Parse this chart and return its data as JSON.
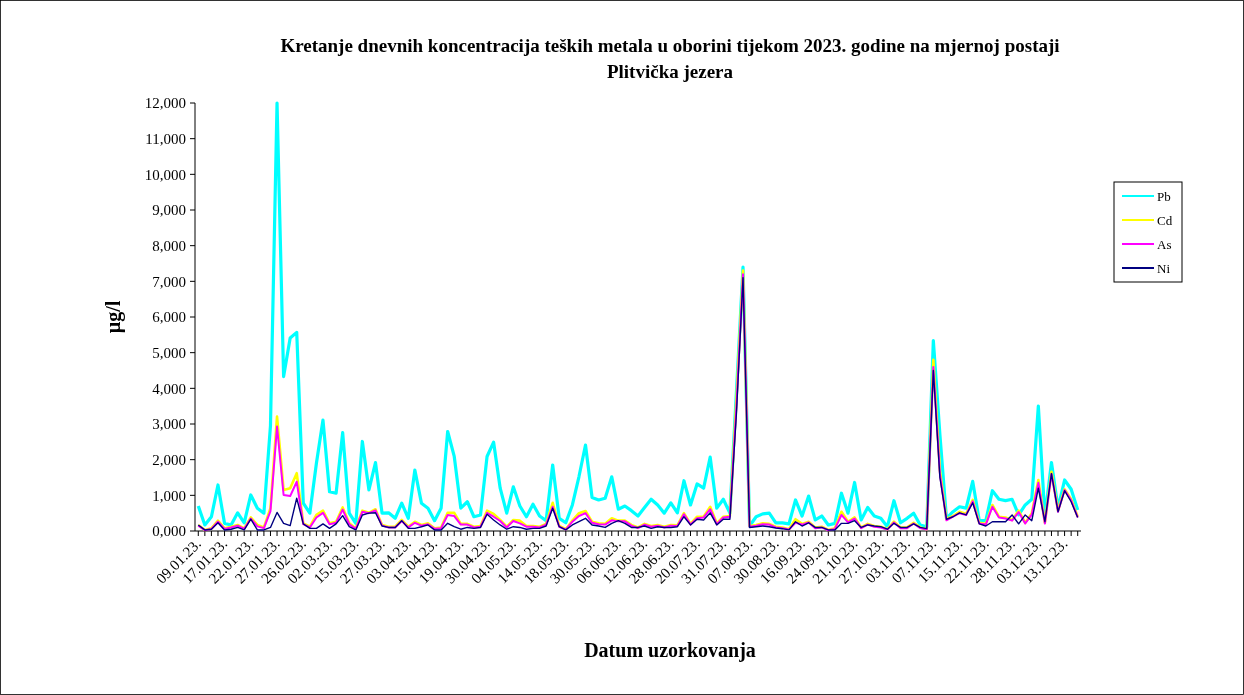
{
  "chart_data": {
    "type": "line",
    "title": "Kretanje dnevnih koncentracija teških metala u oborini tijekom 2023. godine na mjernoj postaji Plitvička jezera",
    "xlabel": "Datum uzorkovanja",
    "ylabel": "µg/l",
    "categories": [
      "09.01.23.",
      null,
      null,
      null,
      "17.01.23.",
      null,
      null,
      null,
      "22.01.23.",
      null,
      null,
      null,
      "27.01.23.",
      null,
      null,
      null,
      "26.02.23.",
      null,
      null,
      null,
      "02.03.23.",
      null,
      null,
      null,
      "15.03.23.",
      null,
      null,
      null,
      "27.03.23.",
      null,
      null,
      null,
      "03.04.23.",
      null,
      null,
      null,
      "15.04.23.",
      null,
      null,
      null,
      "19.04.23.",
      null,
      null,
      null,
      "30.04.23.",
      null,
      null,
      null,
      "04.05.23.",
      null,
      null,
      null,
      "14.05.23.",
      null,
      null,
      null,
      "18.05.23.",
      null,
      null,
      null,
      "30.05.23.",
      null,
      null,
      null,
      "06.06.23.",
      null,
      null,
      null,
      "12.06.23.",
      null,
      null,
      null,
      "28.06.23.",
      null,
      null,
      null,
      "20.07.23.",
      null,
      null,
      null,
      "31.07.23.",
      null,
      null,
      null,
      "07.08.23.",
      null,
      null,
      null,
      "30.08.23.",
      null,
      null,
      null,
      "16.09.23.",
      null,
      null,
      null,
      "24.09.23.",
      null,
      null,
      null,
      "21.10.23.",
      null,
      null,
      null,
      "27.10.23.",
      null,
      null,
      null,
      "03.11.23.",
      null,
      null,
      null,
      "07.11.23.",
      null,
      null,
      null,
      "15.11.23.",
      null,
      null,
      null,
      "22.11.23.",
      null,
      null,
      null,
      "28.11.23.",
      null,
      null,
      null,
      "03.12.23.",
      null,
      null,
      null,
      "13.12.23.",
      null,
      null
    ],
    "series": [
      {
        "name": "Pb",
        "color": "#00ffff",
        "values": [
          700,
          170,
          400,
          1290,
          215,
          170,
          510,
          230,
          1010,
          640,
          500,
          2950,
          12000,
          4330,
          5410,
          5570,
          780,
          500,
          1900,
          3110,
          1100,
          1060,
          2760,
          500,
          215,
          2510,
          1150,
          1920,
          500,
          510,
          355,
          780,
          355,
          1710,
          780,
          640,
          290,
          640,
          2790,
          2090,
          640,
          820,
          400,
          450,
          2090,
          2490,
          1200,
          500,
          1240,
          700,
          400,
          750,
          420,
          290,
          1850,
          355,
          230,
          730,
          1520,
          2410,
          940,
          870,
          920,
          1520,
          610,
          700,
          570,
          420,
          660,
          890,
          730,
          500,
          790,
          510,
          1410,
          730,
          1320,
          1200,
          2070,
          640,
          890,
          500,
          3900,
          7400,
          140,
          400,
          480,
          500,
          230,
          230,
          200,
          870,
          420,
          980,
          310,
          420,
          170,
          215,
          1060,
          500,
          1360,
          310,
          660,
          420,
          355,
          120,
          850,
          230,
          355,
          500,
          170,
          120,
          5340,
          2700,
          355,
          540,
          680,
          640,
          1390,
          290,
          290,
          1130,
          890,
          850,
          890,
          450,
          730,
          890,
          3500,
          400,
          1920,
          640,
          1430,
          1170,
          590
        ]
      },
      {
        "name": "Cd",
        "color": "#ffff00",
        "values": [
          170,
          30,
          75,
          290,
          75,
          120,
          170,
          75,
          380,
          170,
          100,
          640,
          3210,
          1150,
          1200,
          1620,
          215,
          120,
          450,
          570,
          215,
          260,
          660,
          215,
          75,
          570,
          510,
          610,
          170,
          120,
          120,
          310,
          120,
          260,
          170,
          215,
          75,
          100,
          510,
          510,
          200,
          200,
          120,
          140,
          570,
          480,
          310,
          120,
          310,
          290,
          140,
          140,
          120,
          200,
          790,
          140,
          50,
          290,
          500,
          560,
          260,
          215,
          200,
          355,
          290,
          290,
          170,
          100,
          200,
          140,
          170,
          120,
          170,
          160,
          500,
          200,
          400,
          400,
          680,
          215,
          400,
          420,
          3700,
          7300,
          140,
          170,
          215,
          200,
          120,
          100,
          50,
          330,
          200,
          260,
          100,
          120,
          30,
          75,
          540,
          260,
          380,
          100,
          200,
          140,
          120,
          50,
          260,
          100,
          100,
          230,
          100,
          50,
          4800,
          1700,
          330,
          420,
          540,
          480,
          870,
          230,
          200,
          730,
          400,
          380,
          310,
          570,
          230,
          500,
          1430,
          230,
          1660,
          570,
          1170,
          890,
          400
        ]
      },
      {
        "name": "As",
        "color": "#ff00ff",
        "values": [
          150,
          20,
          60,
          260,
          60,
          100,
          150,
          60,
          350,
          130,
          80,
          560,
          2930,
          1010,
          980,
          1380,
          190,
          100,
          380,
          510,
          190,
          230,
          600,
          190,
          60,
          540,
          500,
          580,
          150,
          100,
          100,
          280,
          100,
          230,
          150,
          190,
          60,
          80,
          450,
          420,
          180,
          180,
          100,
          120,
          510,
          400,
          280,
          100,
          280,
          215,
          120,
          120,
          100,
          180,
          680,
          120,
          40,
          260,
          420,
          500,
          230,
          190,
          180,
          300,
          270,
          270,
          150,
          80,
          180,
          120,
          150,
          100,
          150,
          140,
          470,
          180,
          355,
          380,
          610,
          190,
          380,
          400,
          3500,
          7200,
          120,
          150,
          190,
          180,
          100,
          80,
          40,
          230,
          180,
          240,
          80,
          100,
          20,
          60,
          450,
          240,
          350,
          80,
          180,
          120,
          100,
          40,
          240,
          80,
          80,
          210,
          80,
          40,
          4600,
          1600,
          300,
          400,
          500,
          450,
          830,
          210,
          180,
          680,
          380,
          350,
          290,
          530,
          210,
          460,
          1350,
          210,
          1600,
          540,
          1150,
          860,
          380
        ]
      },
      {
        "name": "Ni",
        "color": "#000080",
        "values": [
          170,
          30,
          50,
          230,
          30,
          50,
          100,
          30,
          330,
          30,
          30,
          100,
          520,
          215,
          150,
          920,
          200,
          75,
          75,
          200,
          75,
          200,
          430,
          120,
          30,
          450,
          500,
          510,
          140,
          100,
          100,
          290,
          75,
          75,
          120,
          170,
          30,
          30,
          215,
          120,
          50,
          100,
          75,
          100,
          470,
          310,
          170,
          50,
          120,
          100,
          50,
          75,
          75,
          140,
          640,
          120,
          30,
          170,
          260,
          355,
          170,
          140,
          100,
          215,
          290,
          215,
          100,
          100,
          140,
          75,
          120,
          100,
          100,
          120,
          400,
          170,
          330,
          310,
          510,
          170,
          330,
          330,
          3300,
          7100,
          100,
          120,
          140,
          120,
          85,
          65,
          30,
          260,
          140,
          230,
          100,
          100,
          30,
          30,
          215,
          215,
          290,
          100,
          170,
          140,
          120,
          50,
          215,
          100,
          100,
          200,
          100,
          65,
          4500,
          1500,
          330,
          400,
          510,
          450,
          790,
          200,
          140,
          260,
          260,
          260,
          450,
          200,
          450,
          290,
          1200,
          260,
          1610,
          540,
          1130,
          820,
          380
        ]
      }
    ],
    "ylim": [
      0,
      12000
    ],
    "yticks": [
      {
        "value": 0,
        "label": "0,000"
      },
      {
        "value": 1000,
        "label": "1,000"
      },
      {
        "value": 2000,
        "label": "2,000"
      },
      {
        "value": 3000,
        "label": "3,000"
      },
      {
        "value": 4000,
        "label": "4,000"
      },
      {
        "value": 5000,
        "label": "5,000"
      },
      {
        "value": 6000,
        "label": "6,000"
      },
      {
        "value": 7000,
        "label": "7,000"
      },
      {
        "value": 8000,
        "label": "8,000"
      },
      {
        "value": 9000,
        "label": "9,000"
      },
      {
        "value": 10000,
        "label": "10,000"
      },
      {
        "value": 11000,
        "label": "11,000"
      },
      {
        "value": 12000,
        "label": "12,000"
      }
    ],
    "grid": false,
    "legend": "right",
    "marker": "none",
    "line_style": "solid"
  }
}
